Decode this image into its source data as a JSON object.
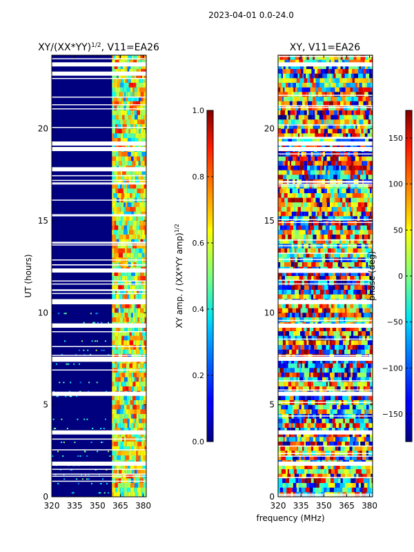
{
  "figure": {
    "suptitle": "2023-04-01 0.0-24.0",
    "common_xlabel": "frequency (MHz)"
  },
  "chart_data": [
    {
      "type": "heatmap",
      "title_main": "XY/(XX*YY)",
      "title_sup": "1/2",
      "title_rest": ", V11=EA26",
      "xlabel": "",
      "ylabel": "UT (hours)",
      "xlim": [
        320,
        382
      ],
      "ylim": [
        0,
        24
      ],
      "xticks": [
        320,
        335,
        350,
        365,
        380
      ],
      "yticks": [
        0,
        5,
        10,
        15,
        20
      ],
      "colorbar": {
        "label_main": "XY amp. / (XX*YY amp)",
        "label_sup": "1/2",
        "range": [
          0.0,
          1.0
        ],
        "ticks": [
          "0.0",
          "0.2",
          "0.4",
          "0.6",
          "0.8",
          "1.0"
        ],
        "colormap": "jet"
      },
      "active_band_mhz": [
        359.5,
        382
      ],
      "flagged_hours": [
        23.5,
        23.0,
        19.2,
        18.9,
        17.8,
        12.3,
        10.6,
        9.3,
        7.5,
        5.6,
        3.5,
        1.8
      ],
      "colors": {
        "background": "#00007f"
      }
    },
    {
      "type": "heatmap",
      "title": "XY, V11=EA26",
      "xlabel": "",
      "ylabel": "",
      "xlim": [
        320,
        382
      ],
      "ylim": [
        0,
        24
      ],
      "xticks": [
        320,
        335,
        350,
        365,
        380
      ],
      "yticks": [
        0,
        5,
        10,
        15,
        20
      ],
      "colorbar": {
        "label": "phase (deg)",
        "range": [
          -180,
          180
        ],
        "ticks": [
          "−150",
          "−100",
          "−50",
          "0",
          "50",
          "100",
          "150"
        ],
        "colormap": "jet"
      },
      "flagged_hours": [
        23.5,
        19.2,
        18.9,
        12.3,
        10.6,
        9.3,
        7.5,
        5.6,
        3.5,
        1.8
      ]
    }
  ]
}
